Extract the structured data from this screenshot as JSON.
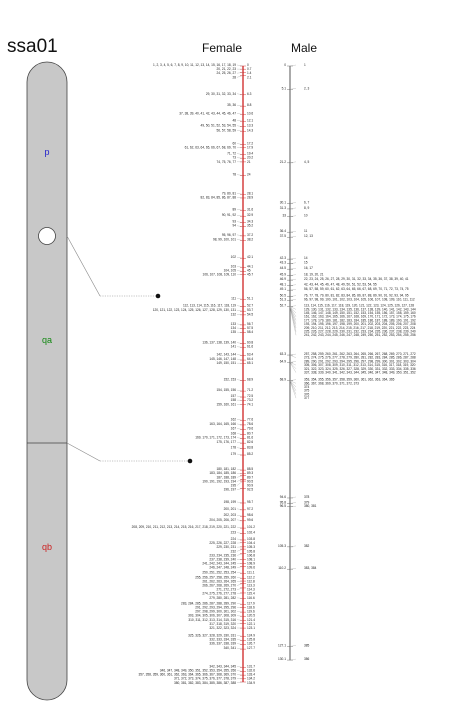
{
  "chromosome": {
    "name": "ssa01",
    "arms": [
      {
        "label": "p",
        "color": "#2222cc"
      },
      {
        "label": "qa",
        "color": "#118811"
      },
      {
        "label": "qb",
        "color": "#cc2222"
      }
    ]
  },
  "columns": {
    "female": "Female",
    "male": "Male"
  },
  "colors": {
    "chromosome_fill": "#c8c8c8",
    "chromosome_stroke": "#444444",
    "map_line_female": "#cc1111",
    "map_line_male": "#555555",
    "marker_black": "#222222",
    "marker_blue": "#2233bb",
    "marker_green": "#118811",
    "marker_red": "#cc1111"
  },
  "female_map": [
    {
      "pos": "0",
      "markers": "1, 2, 3, 4, 5, 6, 7, 8, 9, 10, 11, 12, 13, 14, 15, 16, 17, 18, 19"
    },
    {
      "pos": "0.7",
      "markers": "20, 21, 22, 23"
    },
    {
      "pos": "1.4",
      "markers": "24, 25, 26, 27"
    },
    {
      "pos": "2.1",
      "markers": "28"
    },
    {
      "pos": "6.3",
      "markers": "29, 30, 31, 32, 33, 34"
    },
    {
      "pos": "8.8",
      "markers": "35, 36"
    },
    {
      "pos": "10.6",
      "markers": "37, 38, 39, 40, 41, 42, 43, 44, 45, 46, 47"
    },
    {
      "pos": "12.1",
      "markers": "48"
    },
    {
      "pos": "13.3",
      "markers": "49, 50, 51, 52, 53, 54, 55"
    },
    {
      "pos": "14.3",
      "markers": "56, 57, 58, 59"
    },
    {
      "pos": "17.2",
      "markers": "60"
    },
    {
      "pos": "17.9",
      "markers": "61, 62, 63, 64, 65, 66, 67, 68, 69, 70"
    },
    {
      "pos": "19.4",
      "markers": "71, 72"
    },
    {
      "pos": "20.2",
      "markers": "73"
    },
    {
      "pos": "21",
      "markers": "74, 75, 76, 77"
    },
    {
      "pos": "24",
      "markers": "78"
    },
    {
      "pos": "28.1",
      "markers": "79, 80, 81"
    },
    {
      "pos": "28.9",
      "markers": "82, 83, 84, 85, 86, 87, 88"
    },
    {
      "pos": "31.6",
      "markers": "89"
    },
    {
      "pos": "32.9",
      "markers": "90, 91, 92"
    },
    {
      "pos": "34.3",
      "markers": "93"
    },
    {
      "pos": "35.2",
      "markers": "94"
    },
    {
      "pos": "37.2",
      "markers": "95, 96, 97"
    },
    {
      "pos": "38.2",
      "markers": "98, 99, 100, 101"
    },
    {
      "pos": "42.1",
      "markers": "102"
    },
    {
      "pos": "44.1",
      "markers": "103"
    },
    {
      "pos": "45",
      "markers": "104, 105"
    },
    {
      "pos": "45.7",
      "markers": "106, 107, 108, 109, 110"
    },
    {
      "pos": "51.1",
      "markers": "111"
    },
    {
      "pos": "52.7",
      "markers": "112, 113, 114, 115, 116, 117, 118, 119"
    },
    {
      "pos": "53.7",
      "markers": "120, 121, 122, 123, 124, 125, 126, 127, 128, 129, 130, 131"
    },
    {
      "pos": "54.5",
      "markers": "132"
    },
    {
      "pos": "56.7",
      "markers": "133"
    },
    {
      "pos": "57.5",
      "markers": "134"
    },
    {
      "pos": "58.4",
      "markers": "135"
    },
    {
      "pos": "60.8",
      "markers": "136, 137, 138, 139, 140"
    },
    {
      "pos": "61.6",
      "markers": "141"
    },
    {
      "pos": "63.4",
      "markers": "142, 143, 144"
    },
    {
      "pos": "64.4",
      "markers": "145, 146, 147, 148"
    },
    {
      "pos": "65.1",
      "markers": "149, 150, 151"
    },
    {
      "pos": "68.9",
      "markers": "152, 153"
    },
    {
      "pos": "71.2",
      "markers": "154, 155, 156"
    },
    {
      "pos": "72.5",
      "markers": "157"
    },
    {
      "pos": "73.2",
      "markers": "158"
    },
    {
      "pos": "74.1",
      "markers": "159, 160, 161"
    },
    {
      "pos": "77.6",
      "markers": "162"
    },
    {
      "pos": "78.6",
      "markers": "163, 164, 165, 166"
    },
    {
      "pos": "79.6",
      "markers": "167"
    },
    {
      "pos": "80.7",
      "markers": "168"
    },
    {
      "pos": "81.6",
      "markers": "169, 170, 171, 172, 173, 174"
    },
    {
      "pos": "82.6",
      "markers": "175, 176, 177"
    },
    {
      "pos": "83.8",
      "markers": "178"
    },
    {
      "pos": "85.2",
      "markers": "179"
    },
    {
      "pos": "88.5",
      "markers": "180, 181, 182"
    },
    {
      "pos": "89.3",
      "markers": "183, 184, 185, 186"
    },
    {
      "pos": "89.7",
      "markers": "187, 188, 189"
    },
    {
      "pos": "90.5",
      "markers": "190, 191, 192, 193, 194"
    },
    {
      "pos": "90.9",
      "markers": "195"
    },
    {
      "pos": "92.5",
      "markers": "196, 197"
    },
    {
      "pos": "95.7",
      "markers": "198, 199"
    },
    {
      "pos": "97.2",
      "markers": "200, 201"
    },
    {
      "pos": "98.6",
      "markers": "202, 203"
    },
    {
      "pos": "99.6",
      "markers": "204, 205, 206, 207"
    },
    {
      "pos": "101.2",
      "markers": "208, 209, 210, 211, 212, 213, 214, 215, 216, 217, 218, 219, 220, 221, 222"
    },
    {
      "pos": "102.4",
      "markers": "223"
    },
    {
      "pos": "103.8",
      "markers": "224"
    },
    {
      "pos": "104.4",
      "markers": "225, 226, 227, 228"
    },
    {
      "pos": "105.3",
      "markers": "229, 230, 231"
    },
    {
      "pos": "105.8",
      "markers": "232"
    },
    {
      "pos": "106.8",
      "markers": "233, 234, 235, 236"
    },
    {
      "pos": "108.1",
      "markers": "237, 238, 239, 240"
    },
    {
      "pos": "108.9",
      "markers": "241, 242, 243, 244, 245"
    },
    {
      "pos": "109.6",
      "markers": "246, 247, 248, 249"
    },
    {
      "pos": "111.1",
      "markers": "250, 251, 252, 253, 254"
    },
    {
      "pos": "112.2",
      "markers": "255, 256, 257, 258, 259, 260"
    },
    {
      "pos": "112.8",
      "markers": "261, 262, 263, 264, 265"
    },
    {
      "pos": "113.3",
      "markers": "266, 267, 268, 269, 270"
    },
    {
      "pos": "114.3",
      "markers": "271, 272, 273"
    },
    {
      "pos": "115.4",
      "markers": "274, 275, 276, 277, 278"
    },
    {
      "pos": "116.6",
      "markers": "279, 280, 281, 282"
    },
    {
      "pos": "117.9",
      "markers": "283, 284, 285, 286, 287, 288, 289, 290"
    },
    {
      "pos": "118.6",
      "markers": "291, 292, 293, 294, 295, 296"
    },
    {
      "pos": "119.6",
      "markers": "297, 298, 299, 300, 301, 302"
    },
    {
      "pos": "120.5",
      "markers": "303, 304, 305, 306, 307, 308, 309"
    },
    {
      "pos": "121.4",
      "markers": "310, 311, 312, 313, 314, 315, 316"
    },
    {
      "pos": "122.1",
      "markers": "317, 318, 319, 320"
    },
    {
      "pos": "123.1",
      "markers": "321, 322, 323, 324"
    },
    {
      "pos": "124.9",
      "markers": "325, 326, 327, 328, 329, 330, 331"
    },
    {
      "pos": "125.8",
      "markers": "332, 333, 334, 335"
    },
    {
      "pos": "126.7",
      "markers": "336, 337, 338, 339"
    },
    {
      "pos": "127.7",
      "markers": "340, 341"
    },
    {
      "pos": "131.7",
      "markers": "342, 343, 344, 345"
    },
    {
      "pos": "132.6",
      "markers": "346, 347, 348, 349, 350, 351, 352, 353, 354, 355, 356"
    },
    {
      "pos": "133.4",
      "markers": "357, 358, 359, 360, 361, 362, 363, 364, 365, 366, 367, 368, 369, 370"
    },
    {
      "pos": "134.2",
      "markers": "371, 372, 373, 374, 375, 376, 377, 378, 379"
    },
    {
      "pos": "134.9",
      "markers": "380, 381, 382, 383, 384, 385, 386, 387, 388"
    }
  ],
  "male_map": [
    {
      "pos": "0",
      "markers": "1"
    },
    {
      "pos": "5.1",
      "markers": "2, 3"
    },
    {
      "pos": "21.2",
      "markers": "4, 5"
    },
    {
      "pos": "30.1",
      "markers": "6, 7"
    },
    {
      "pos": "31.3",
      "markers": "8, 9"
    },
    {
      "pos": "33",
      "markers": "10"
    },
    {
      "pos": "36.4",
      "markers": "11"
    },
    {
      "pos": "37.5",
      "markers": "12, 13"
    },
    {
      "pos": "42.3",
      "markers": "14"
    },
    {
      "pos": "43.3",
      "markers": "15"
    },
    {
      "pos": "44.5",
      "markers": "16, 17"
    },
    {
      "pos": "45.9",
      "markers": "18, 19, 20, 21"
    },
    {
      "pos": "46.9",
      "markers": "22, 23, 24, 25, 26, 27, 28, 29, 30, 31, 32, 33, 34, 35, 36, 37, 38, 39, 40, 41"
    },
    {
      "pos": "48.1",
      "markers": "42, 43, 44, 45, 46, 47, 48, 49, 50, 51, 52, 53, 54, 55"
    },
    {
      "pos": "49.1",
      "markers": "56, 57, 58, 59, 60, 61, 62, 63, 64, 65, 66, 67, 68, 69, 70, 71, 72, 73, 74, 75"
    },
    {
      "pos": "50.5",
      "markers": "76, 77, 78, 79, 80, 81, 82, 83, 84, 85, 86, 87, 88, 89, 90, 91, 92, 93, 94, 95"
    },
    {
      "pos": "51.3",
      "markers": "96, 97, 98, 99, 100, 101, 102, 103, 104, 105, 106, 107, 108, 109, 110, 111, 112"
    },
    {
      "pos": "52.7",
      "markers": "113, 114, 115, 116, 117, 118, 119, 120, 121, 122, 123, 124, 125, 126, 127, 128"
    },
    {
      "pos": "",
      "markers": "129, 130, 131, 132, 133, 134, 135, 136, 137, 138, 139, 140, 141, 142, 143, 144"
    },
    {
      "pos": "",
      "markers": "145, 146, 147, 148, 149, 150, 151, 152, 153, 154, 155, 156, 157, 158, 159, 160"
    },
    {
      "pos": "",
      "markers": "161, 162, 163, 164, 165, 166, 167, 168, 169, 170, 171, 172, 173, 174, 175, 176"
    },
    {
      "pos": "",
      "markers": "177, 178, 179, 180, 181, 182, 183, 184, 185, 186, 187, 188, 189, 190, 191, 192"
    },
    {
      "pos": "",
      "markers": "193, 194, 195, 196, 197, 198, 199, 200, 201, 202, 203, 204, 205, 206, 207, 208"
    },
    {
      "pos": "",
      "markers": "209, 210, 211, 212, 213, 214, 215, 216, 217, 218, 219, 220, 221, 222, 223, 224"
    },
    {
      "pos": "",
      "markers": "225, 226, 227, 228, 229, 230, 231, 232, 233, 234, 235, 236, 237, 238, 239, 240"
    },
    {
      "pos": "",
      "markers": "241, 242, 243, 244, 245, 246, 247, 248, 249, 250, 251, 252, 253, 254, 255, 256"
    },
    {
      "pos": "63.3",
      "markers": "257, 258, 259, 260, 261, 262, 263, 264, 265, 266, 267, 268, 269, 270, 271, 272"
    },
    {
      "pos": "",
      "markers": "273, 274, 275, 276, 277, 278, 279, 280, 281, 282, 283, 284, 285, 286, 287, 288"
    },
    {
      "pos": "64.9",
      "markers": "289, 290, 291, 292, 293, 294, 295, 296, 297, 298, 299, 300, 301, 302, 303, 304"
    },
    {
      "pos": "",
      "markers": "305, 306, 307, 308, 309, 310, 311, 312, 313, 314, 315, 316, 317, 318, 319, 320"
    },
    {
      "pos": "",
      "markers": "321, 322, 323, 324, 325, 326, 327, 328, 329, 330, 331, 332, 333, 334, 335, 336"
    },
    {
      "pos": "",
      "markers": "337, 338, 339, 340, 341, 342, 343, 344, 345, 346, 347, 348, 349, 350, 351, 352"
    },
    {
      "pos": "68.9",
      "markers": "353, 354, 355, 356, 357, 358, 359, 360, 361, 362, 363, 364, 365"
    },
    {
      "pos": "",
      "markers": "366, 367, 368, 369, 370, 371, 372, 373"
    },
    {
      "pos": "",
      "markers": "374"
    },
    {
      "pos": "",
      "markers": "375"
    },
    {
      "pos": "",
      "markers": "376"
    },
    {
      "pos": "",
      "markers": "377"
    },
    {
      "pos": "94.6",
      "markers": "378"
    },
    {
      "pos": "95.8",
      "markers": "379"
    },
    {
      "pos": "96.5",
      "markers": "380, 381"
    },
    {
      "pos": "105.3",
      "markers": "382"
    },
    {
      "pos": "110.2",
      "markers": "383, 384"
    },
    {
      "pos": "127.1",
      "markers": "385"
    },
    {
      "pos": "130.1",
      "markers": "386"
    }
  ]
}
